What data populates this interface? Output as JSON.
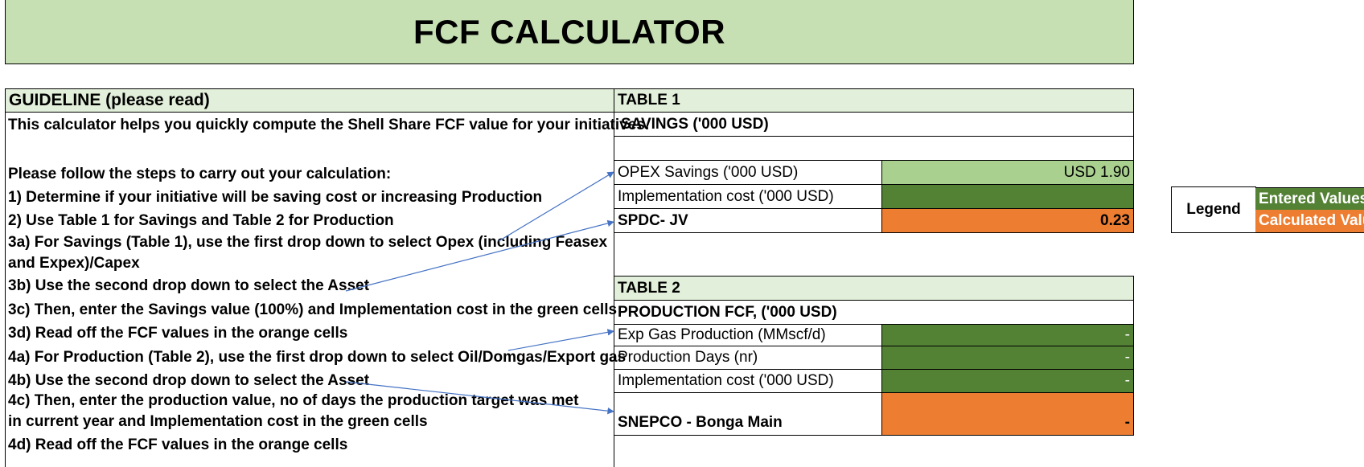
{
  "title": "FCF CALCULATOR",
  "guideline": {
    "header": "GUIDELINE (please read)",
    "intro": "This calculator helps you quickly compute the Shell Share FCF value for your initiatives.",
    "steps_intro": "Please follow the steps to carry out your calculation:",
    "steps": [
      "1) Determine if your initiative will be saving cost or increasing Production",
      "2) Use Table 1 for Savings and Table 2 for Production",
      "3a) For Savings (Table 1), use the first drop down to select Opex (including Feasex and Expex)/Capex",
      "3b) Use the second drop down to select the Asset",
      "3c) Then, enter the Savings value (100%) and Implementation cost in the green cells",
      "3d) Read off the FCF values in the orange cells",
      "4a) For Production (Table 2), use the first drop down to select Oil/Domgas/Export gas",
      "4b) Use the second drop down to select the Asset",
      "4c) Then, enter the production value, no of days the production target was met in current year and Implementation cost in the green cells",
      "4d) Read off the FCF values in the orange cells"
    ]
  },
  "table1": {
    "header": "TABLE 1",
    "subheader": "SAVINGS ('000 USD)",
    "rows": [
      {
        "label": "OPEX Savings ('000 USD)",
        "value": "USD 1.90"
      },
      {
        "label": "Implementation cost ('000 USD)",
        "value": ""
      },
      {
        "label": "SPDC- JV",
        "value": "0.23"
      }
    ]
  },
  "table2": {
    "header": "TABLE 2",
    "subheader": "PRODUCTION FCF, ('000 USD)",
    "rows": [
      {
        "label": "Exp Gas Production (MMscf/d)",
        "value": "-"
      },
      {
        "label": "Production Days (nr)",
        "value": "-"
      },
      {
        "label": "Implementation cost ('000 USD)",
        "value": "-"
      },
      {
        "label": "SNEPCO - Bonga Main",
        "value": "-"
      }
    ]
  },
  "legend": {
    "label": "Legend",
    "entered": "Entered Values",
    "calculated": "Calculated Valu"
  },
  "colors": {
    "title_bg": "#c6e0b4",
    "header_bg": "#e2efda",
    "light_green": "#a9d08e",
    "dark_green": "#548235",
    "orange": "#ed7d31",
    "arrow": "#4472c4"
  }
}
